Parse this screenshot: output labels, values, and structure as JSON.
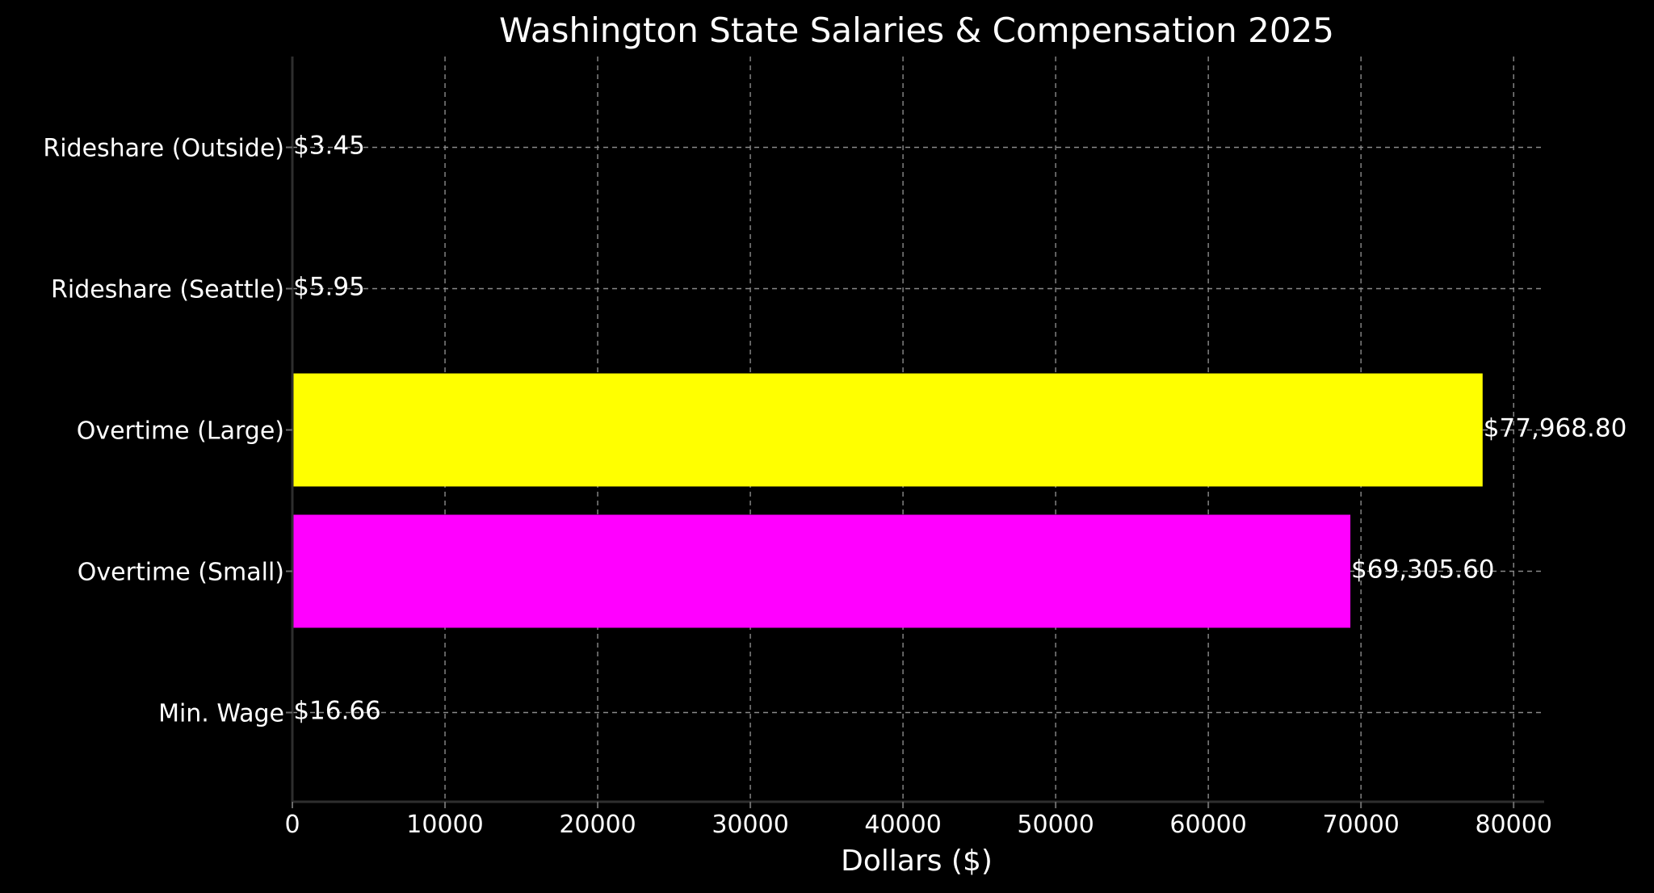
{
  "chart_data": {
    "type": "bar",
    "orientation": "horizontal",
    "title": "Washington State Salaries & Compensation 2025",
    "xlabel": "Dollars ($)",
    "ylabel": "",
    "xlim": [
      0,
      82000
    ],
    "xticks": [
      0,
      10000,
      20000,
      30000,
      40000,
      50000,
      60000,
      70000,
      80000
    ],
    "xtick_labels": [
      "0",
      "10000",
      "20000",
      "30000",
      "40000",
      "50000",
      "60000",
      "70000",
      "80000"
    ],
    "categories": [
      "Min. Wage",
      "Overtime (Small)",
      "Overtime (Large)",
      "Rideshare (Seattle)",
      "Rideshare (Outside)"
    ],
    "values": [
      16.66,
      69305.6,
      77968.8,
      5.95,
      3.45
    ],
    "data_labels": [
      "$16.66",
      "$69,305.60",
      "$77,968.80",
      "$5.95",
      "$3.45"
    ],
    "colors": [
      "#00ffff",
      "#ff00ff",
      "#ffff00",
      "#00ff00",
      "#ff0000"
    ],
    "grid": true,
    "background": "#000000"
  }
}
